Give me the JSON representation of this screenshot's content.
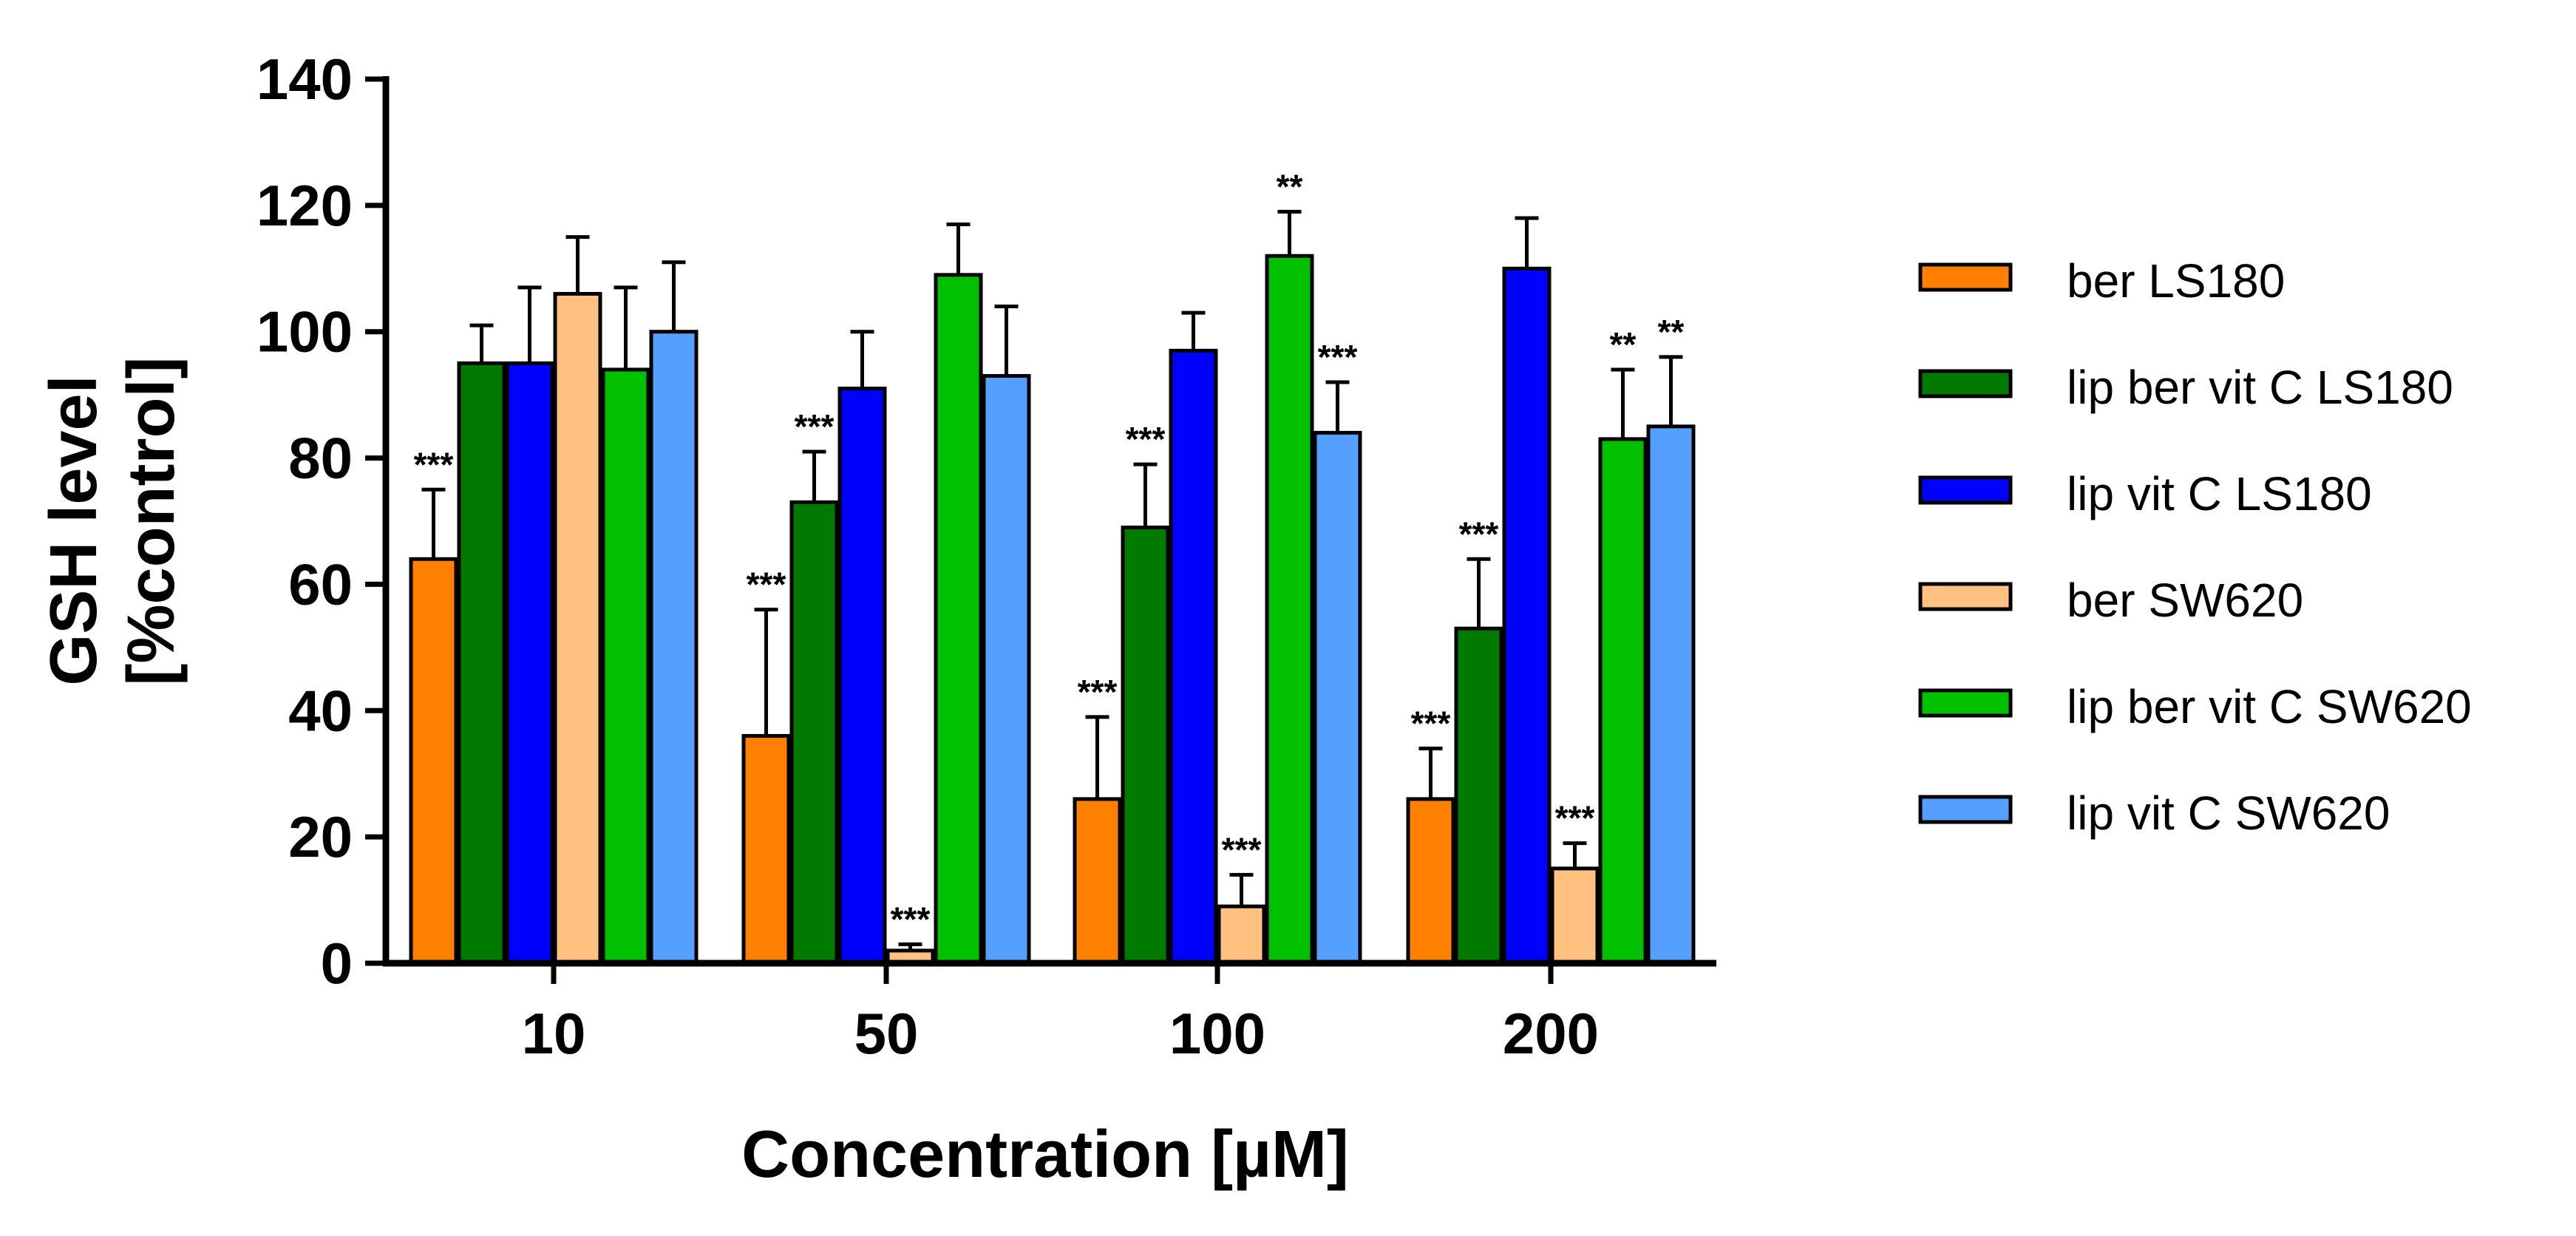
{
  "chart_data": {
    "type": "bar",
    "title": "",
    "xlabel": "Concentration [µM]",
    "ylabel_lines": [
      "GSH level",
      "[%control]"
    ],
    "ylim": [
      0,
      140
    ],
    "yticks": [
      0,
      20,
      40,
      60,
      80,
      100,
      120,
      140
    ],
    "categories": [
      "10",
      "50",
      "100",
      "200"
    ],
    "legend_position": "right",
    "series": [
      {
        "name": "ber LS180",
        "color": "#FF8000",
        "values": [
          64,
          36,
          26,
          26
        ],
        "errors": [
          11,
          20,
          13,
          8
        ],
        "significance": [
          "***",
          "***",
          "***",
          "***"
        ]
      },
      {
        "name": "lip ber vit C LS180",
        "color": "#007A00",
        "values": [
          95,
          73,
          69,
          53
        ],
        "errors": [
          6,
          8,
          10,
          11
        ],
        "significance": [
          "",
          "***",
          "***",
          "***"
        ]
      },
      {
        "name": "lip vit C LS180",
        "color": "#0000FF",
        "values": [
          95,
          91,
          97,
          110
        ],
        "errors": [
          12,
          9,
          6,
          8
        ],
        "significance": [
          "",
          "",
          "",
          ""
        ]
      },
      {
        "name": "ber SW620",
        "color": "#FFC080",
        "values": [
          106,
          2,
          9,
          15
        ],
        "errors": [
          9,
          1,
          5,
          4
        ],
        "significance": [
          "",
          "***",
          "***",
          "***"
        ]
      },
      {
        "name": "lip ber vit C SW620",
        "color": "#00C000",
        "values": [
          94,
          109,
          112,
          83
        ],
        "errors": [
          13,
          8,
          7,
          11
        ],
        "significance": [
          "",
          "",
          "**",
          "**"
        ]
      },
      {
        "name": "lip vit C SW620",
        "color": "#55A0FF",
        "values": [
          100,
          93,
          84,
          85
        ],
        "errors": [
          11,
          11,
          8,
          11
        ],
        "significance": [
          "",
          "",
          "***",
          "**"
        ]
      }
    ]
  }
}
